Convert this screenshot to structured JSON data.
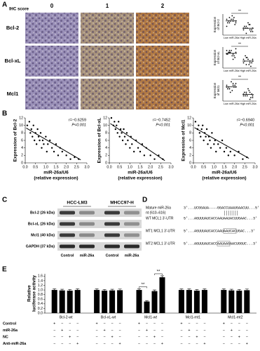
{
  "panel_labels": [
    "A",
    "B",
    "C",
    "D",
    "E"
  ],
  "ihc": {
    "score_label": "IHC score",
    "scores": [
      "0",
      "1",
      "2"
    ],
    "markers": [
      "Bcl-2",
      "Bcl-xL",
      "Mcl1"
    ]
  },
  "chart_data": [
    {
      "type": "strip",
      "ylabel": [
        "Expression",
        "of Bcl-2"
      ],
      "categories": [
        "Low miR-26a",
        "High miR-26a"
      ],
      "values": [
        [
          9,
          8,
          10,
          7,
          11,
          8,
          6,
          9,
          7,
          10,
          8,
          5,
          9,
          7,
          8
        ],
        [
          4,
          3,
          5,
          2,
          6,
          4,
          3,
          7,
          5,
          2,
          4,
          3,
          6,
          1,
          4
        ]
      ],
      "means": [
        8.1,
        3.9
      ],
      "ylim": [
        0,
        12
      ],
      "significance": "**",
      "color": "#000000"
    },
    {
      "type": "strip",
      "ylabel": [
        "Expression",
        "of Bcl-xL"
      ],
      "categories": [
        "Low miR-26a",
        "High miR-26a"
      ],
      "values": [
        [
          10,
          8,
          9,
          11,
          7,
          9,
          6,
          10,
          8,
          7,
          9,
          8,
          5,
          10,
          9
        ],
        [
          5,
          3,
          6,
          4,
          2,
          7,
          3,
          5,
          4,
          1,
          6,
          3,
          4,
          2,
          5
        ]
      ],
      "means": [
        8.4,
        4.0
      ],
      "ylim": [
        0,
        12
      ],
      "significance": "**",
      "color": "#000000"
    },
    {
      "type": "strip",
      "ylabel": [
        "Expression",
        "of Mcl1"
      ],
      "categories": [
        "Low miR-26a",
        "High miR-26a"
      ],
      "values": [
        [
          8,
          9,
          7,
          10,
          6,
          8,
          9,
          11,
          7,
          8,
          5,
          9,
          10,
          7,
          8
        ],
        [
          3,
          5,
          4,
          2,
          6,
          3,
          4,
          7,
          5,
          2,
          3,
          4,
          1,
          5,
          3
        ]
      ],
      "means": [
        8.1,
        3.8
      ],
      "ylim": [
        0,
        12
      ],
      "significance": "**",
      "color": "#000000"
    },
    {
      "type": "scatter",
      "ylabel": "Expression of Bcl-2",
      "xlabel": "miR-26a/U6",
      "xlabel_note": "(relative expression)",
      "annotations": [
        "r=−0.6259",
        "P<0.001"
      ],
      "x": [
        0.1,
        0.2,
        0.25,
        0.3,
        0.35,
        0.4,
        0.45,
        0.5,
        0.55,
        0.6,
        0.65,
        0.7,
        0.75,
        0.8,
        0.85,
        0.9,
        1.0,
        1.05,
        1.1,
        1.2,
        1.3,
        1.4,
        1.5,
        1.6,
        1.7,
        1.8,
        2.0,
        2.2,
        2.4,
        2.6
      ],
      "y": [
        10,
        11,
        8,
        9,
        7,
        10,
        6,
        8,
        5,
        9,
        7,
        6,
        8,
        4,
        6,
        5,
        7,
        3,
        5,
        6,
        4,
        3,
        5,
        2,
        4,
        3,
        2,
        1,
        1.5,
        1
      ],
      "fit": {
        "x": [
          0.05,
          2.7
        ],
        "y": [
          9.3,
          0.8
        ]
      },
      "color": "#000000",
      "xlim": [
        0,
        3
      ],
      "xticks": [
        {
          "value": 0,
          "label": "0.0"
        },
        0.5,
        {
          "value": 1,
          "label": "1.0"
        },
        1.5,
        {
          "value": 2,
          "label": "2.0"
        },
        2.5,
        {
          "value": 3,
          "label": "3.0"
        }
      ],
      "ylim": [
        0,
        12
      ],
      "yticks": [
        0,
        2,
        4,
        6,
        8,
        10,
        12
      ]
    },
    {
      "type": "scatter",
      "ylabel": "Expression of Bcl-xL",
      "xlabel": "miR-26a/U6",
      "xlabel_note": "(relative expression)",
      "annotations": [
        "r=−0.7452",
        "P<0.001"
      ],
      "x": [
        0.1,
        0.2,
        0.25,
        0.3,
        0.35,
        0.4,
        0.45,
        0.5,
        0.55,
        0.6,
        0.65,
        0.7,
        0.75,
        0.8,
        0.85,
        0.9,
        1.0,
        1.05,
        1.1,
        1.2,
        1.3,
        1.4,
        1.5,
        1.6,
        1.7,
        1.8,
        2.0,
        2.2,
        2.4,
        2.6
      ],
      "y": [
        12,
        10,
        11,
        9,
        10,
        8,
        11,
        7,
        9,
        8,
        6,
        9,
        7,
        5,
        8,
        6,
        4,
        7,
        5,
        3,
        6,
        4,
        3,
        5,
        2,
        4,
        2,
        1,
        2,
        1
      ],
      "fit": {
        "x": [
          0.05,
          2.7
        ],
        "y": [
          10.5,
          0.6
        ]
      },
      "color": "#000000",
      "xlim": [
        0,
        3
      ],
      "xticks": [
        {
          "value": 0,
          "label": "0.0"
        },
        0.5,
        {
          "value": 1,
          "label": "1.0"
        },
        1.5,
        {
          "value": 2,
          "label": "2.0"
        },
        2.5,
        {
          "value": 3,
          "label": "3.0"
        }
      ],
      "ylim": [
        0,
        12
      ],
      "yticks": [
        0,
        2,
        4,
        6,
        8,
        10,
        12
      ]
    },
    {
      "type": "scatter",
      "ylabel": "Expression of Mcl1",
      "xlabel": "miR-26a/U6",
      "xlabel_note": "(relative expression)",
      "annotations": [
        "r=−0.6940",
        "P<0.001"
      ],
      "x": [
        0.1,
        0.2,
        0.25,
        0.3,
        0.35,
        0.4,
        0.45,
        0.5,
        0.55,
        0.6,
        0.65,
        0.7,
        0.75,
        0.8,
        0.85,
        0.9,
        1.0,
        1.05,
        1.1,
        1.2,
        1.3,
        1.4,
        1.5,
        1.6,
        1.7,
        1.8,
        2.0,
        2.2,
        2.4,
        2.6
      ],
      "y": [
        11,
        9,
        10,
        8,
        7,
        9,
        10,
        6,
        8,
        7,
        9,
        5,
        7,
        6,
        4,
        8,
        5,
        6,
        3,
        5,
        4,
        6,
        3,
        4,
        2,
        3,
        2,
        3,
        1,
        1.5
      ],
      "fit": {
        "x": [
          0.05,
          2.7
        ],
        "y": [
          9.4,
          1.2
        ]
      },
      "color": "#000000",
      "xlim": [
        0,
        3
      ],
      "xticks": [
        {
          "value": 0,
          "label": "0.0"
        },
        0.5,
        {
          "value": 1,
          "label": "1.0"
        },
        1.5,
        {
          "value": 2,
          "label": "2.0"
        },
        2.5,
        {
          "value": 3,
          "label": "3.0"
        }
      ],
      "ylim": [
        0,
        12
      ],
      "yticks": [
        0,
        2,
        4,
        6,
        8,
        10,
        12
      ]
    },
    {
      "type": "bar",
      "ylabel": [
        "Relative",
        "luciferase activity"
      ],
      "categories": [
        "Bcl-2-wt",
        "Bcl-xL-wt",
        "Mcl1-wt",
        "Mcl1-mt1",
        "Mcl1-mt2"
      ],
      "series": [
        {
          "color": "#000000",
          "values": [
            1.0,
            1.0,
            1.0,
            1.0,
            1.0
          ],
          "errors": [
            0.05,
            0.05,
            0.05,
            0.05,
            0.05
          ]
        },
        {
          "color": "#000000",
          "values": [
            0.98,
            0.97,
            0.5,
            1.0,
            0.98
          ],
          "errors": [
            0.05,
            0.05,
            0.04,
            0.05,
            0.05
          ]
        },
        {
          "color": "#000000",
          "values": [
            0.97,
            0.98,
            0.95,
            0.97,
            0.97
          ],
          "errors": [
            0.05,
            0.05,
            0.05,
            0.05,
            0.05
          ]
        },
        {
          "color": "#000000",
          "values": [
            1.0,
            0.99,
            1.55,
            1.0,
            0.99
          ],
          "errors": [
            0.05,
            0.05,
            0.06,
            0.05,
            0.05
          ]
        }
      ],
      "ylim": [
        0,
        1.7
      ],
      "yticks": [
        {
          "value": 0,
          "label": "0.0"
        },
        0.2,
        0.4,
        0.6,
        0.8,
        {
          "value": 1,
          "label": "1.0"
        },
        1.2,
        1.4,
        1.6
      ],
      "annotations": [
        "**",
        "**"
      ],
      "table": {
        "rows": [
          "Control",
          "miR-26a",
          "NC",
          "Anti-miR-26a"
        ],
        "cells": [
          [
            "+",
            "−",
            "−",
            "−",
            "+",
            "−",
            "−",
            "−",
            "+",
            "−",
            "−",
            "−",
            "+",
            "−",
            "−",
            "−",
            "+",
            "−",
            "−",
            "−"
          ],
          [
            "−",
            "+",
            "−",
            "−",
            "−",
            "+",
            "−",
            "−",
            "−",
            "+",
            "−",
            "−",
            "−",
            "+",
            "−",
            "−",
            "−",
            "+",
            "−",
            "−"
          ],
          [
            "−",
            "−",
            "+",
            "−",
            "−",
            "−",
            "+",
            "−",
            "−",
            "−",
            "+",
            "−",
            "−",
            "−",
            "+",
            "−",
            "−",
            "−",
            "+",
            "−"
          ],
          [
            "−",
            "−",
            "−",
            "+",
            "−",
            "−",
            "−",
            "+",
            "−",
            "−",
            "−",
            "+",
            "−",
            "−",
            "−",
            "+",
            "−",
            "−",
            "−",
            "+"
          ]
        ]
      }
    }
  ],
  "western": {
    "cell_lines": [
      "HCC-LM3",
      "MHCC97-H"
    ],
    "proteins": [
      "Bcl-2 (26 kDa)",
      "Bcl-xL (26 kDa)",
      "Mcl1 (40 kDa)",
      "GAPDH (37 kDa)"
    ],
    "lanes": [
      "Control",
      "miR-26a",
      "Control",
      "miR-26a"
    ]
  },
  "alignment": {
    "mirna_label": "Mature miR-26a",
    "site_label": "nt (610–616)",
    "mirna_seq": "3'...UCGGAUA----GGACCUAAUGAACUU...5'",
    "utrs": [
      {
        "label": "WT MCL1 3'-UTR",
        "seq": "5'...AGUUUAUCACCAAUAAUACUUGAAC...3'"
      },
      {
        "label": "MT1 MCL1 3'-UTR",
        "seq": "5'...AGUUUAUCACCAAUAAUCACUGAC...3'"
      },
      {
        "label": "MT2 MCL1 3'-UTR",
        "seq": "5'...AGUUUAUCACCAAUAAGAACUGGUC...3'"
      }
    ]
  }
}
